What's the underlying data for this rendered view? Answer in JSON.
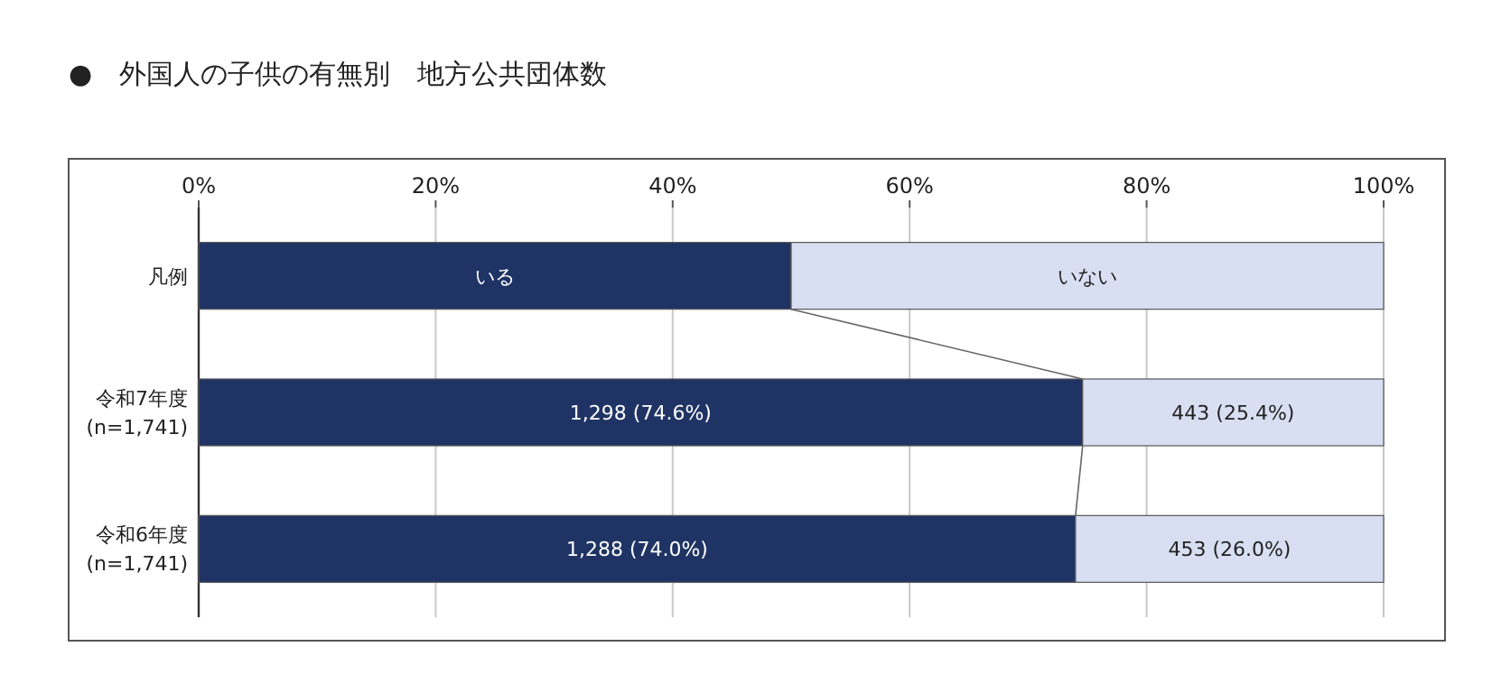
{
  "chart_data": {
    "type": "bar",
    "orientation": "horizontal",
    "stacked": true,
    "title": "●　外国人の子供の有無別　地方公共団体数",
    "categories": [
      "凡例",
      "令和7年度\n(n=1,741)",
      "令和6年度\n(n=1,741)"
    ],
    "series": [
      {
        "name": "いる",
        "color": "#1f3464",
        "values": [
          50,
          74.6,
          74.0
        ],
        "value_labels": [
          null,
          "1,298 (74.6%)",
          "1,288 (74.0%)"
        ]
      },
      {
        "name": "いない",
        "color": "#d9dff2",
        "values": [
          50,
          25.4,
          26.0
        ],
        "value_labels": [
          null,
          "443 (25.4%)",
          "453 (26.0%)"
        ]
      }
    ],
    "xlim": [
      0,
      100
    ],
    "xticks": [
      {
        "value": 0,
        "label": "0%"
      },
      {
        "value": 20,
        "label": "20%"
      },
      {
        "value": 40,
        "label": "40%"
      },
      {
        "value": 60,
        "label": "60%"
      },
      {
        "value": 80,
        "label": "80%"
      },
      {
        "value": 100,
        "label": "100%"
      }
    ],
    "grid": "x",
    "legend": "top"
  }
}
